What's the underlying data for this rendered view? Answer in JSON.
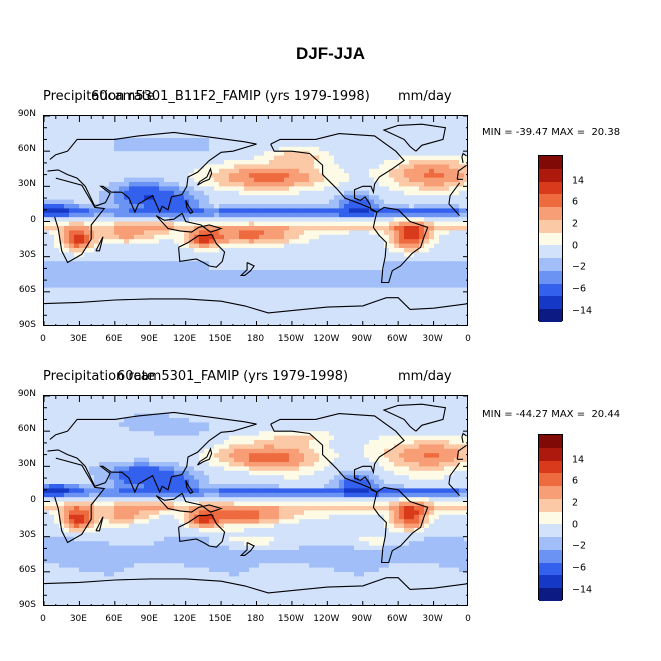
{
  "title": "DJF-JJA",
  "colors": [
    "#0c1a84",
    "#1538c6",
    "#3360ec",
    "#6a93f4",
    "#a1bef8",
    "#d3e2fb",
    "#fdfbe6",
    "#fcc9a6",
    "#f79e76",
    "#ee6a3f",
    "#d93a1b",
    "#ad1a0d",
    "#7f0a06"
  ],
  "colorbar_labels": [
    "14",
    "6",
    "2",
    "0",
    "-2",
    "-6",
    "-14"
  ],
  "y_ticks": [
    "90N",
    "60N",
    "30N",
    "0",
    "30S",
    "60S",
    "90S"
  ],
  "x_ticks": [
    "0",
    "30E",
    "60E",
    "90E",
    "120E",
    "150E",
    "180",
    "150W",
    "120W",
    "90W",
    "60W",
    "30W",
    "0"
  ],
  "panels": [
    {
      "left_title": "Precipitation rate",
      "center_title": "cam5301_B11F2_FAMIP (yrs 1979-1998)",
      "center_prefix": "60",
      "unit": "mm/day",
      "minmax": "MIN = -39.47 MAX =  20.38"
    },
    {
      "left_title": "Precipitation rate",
      "center_title": "cam5301_FAMIP (yrs 1979-1998)",
      "center_prefix": "60",
      "unit": "mm/day",
      "minmax": "MIN = -44.27 MAX =  20.44"
    }
  ]
}
